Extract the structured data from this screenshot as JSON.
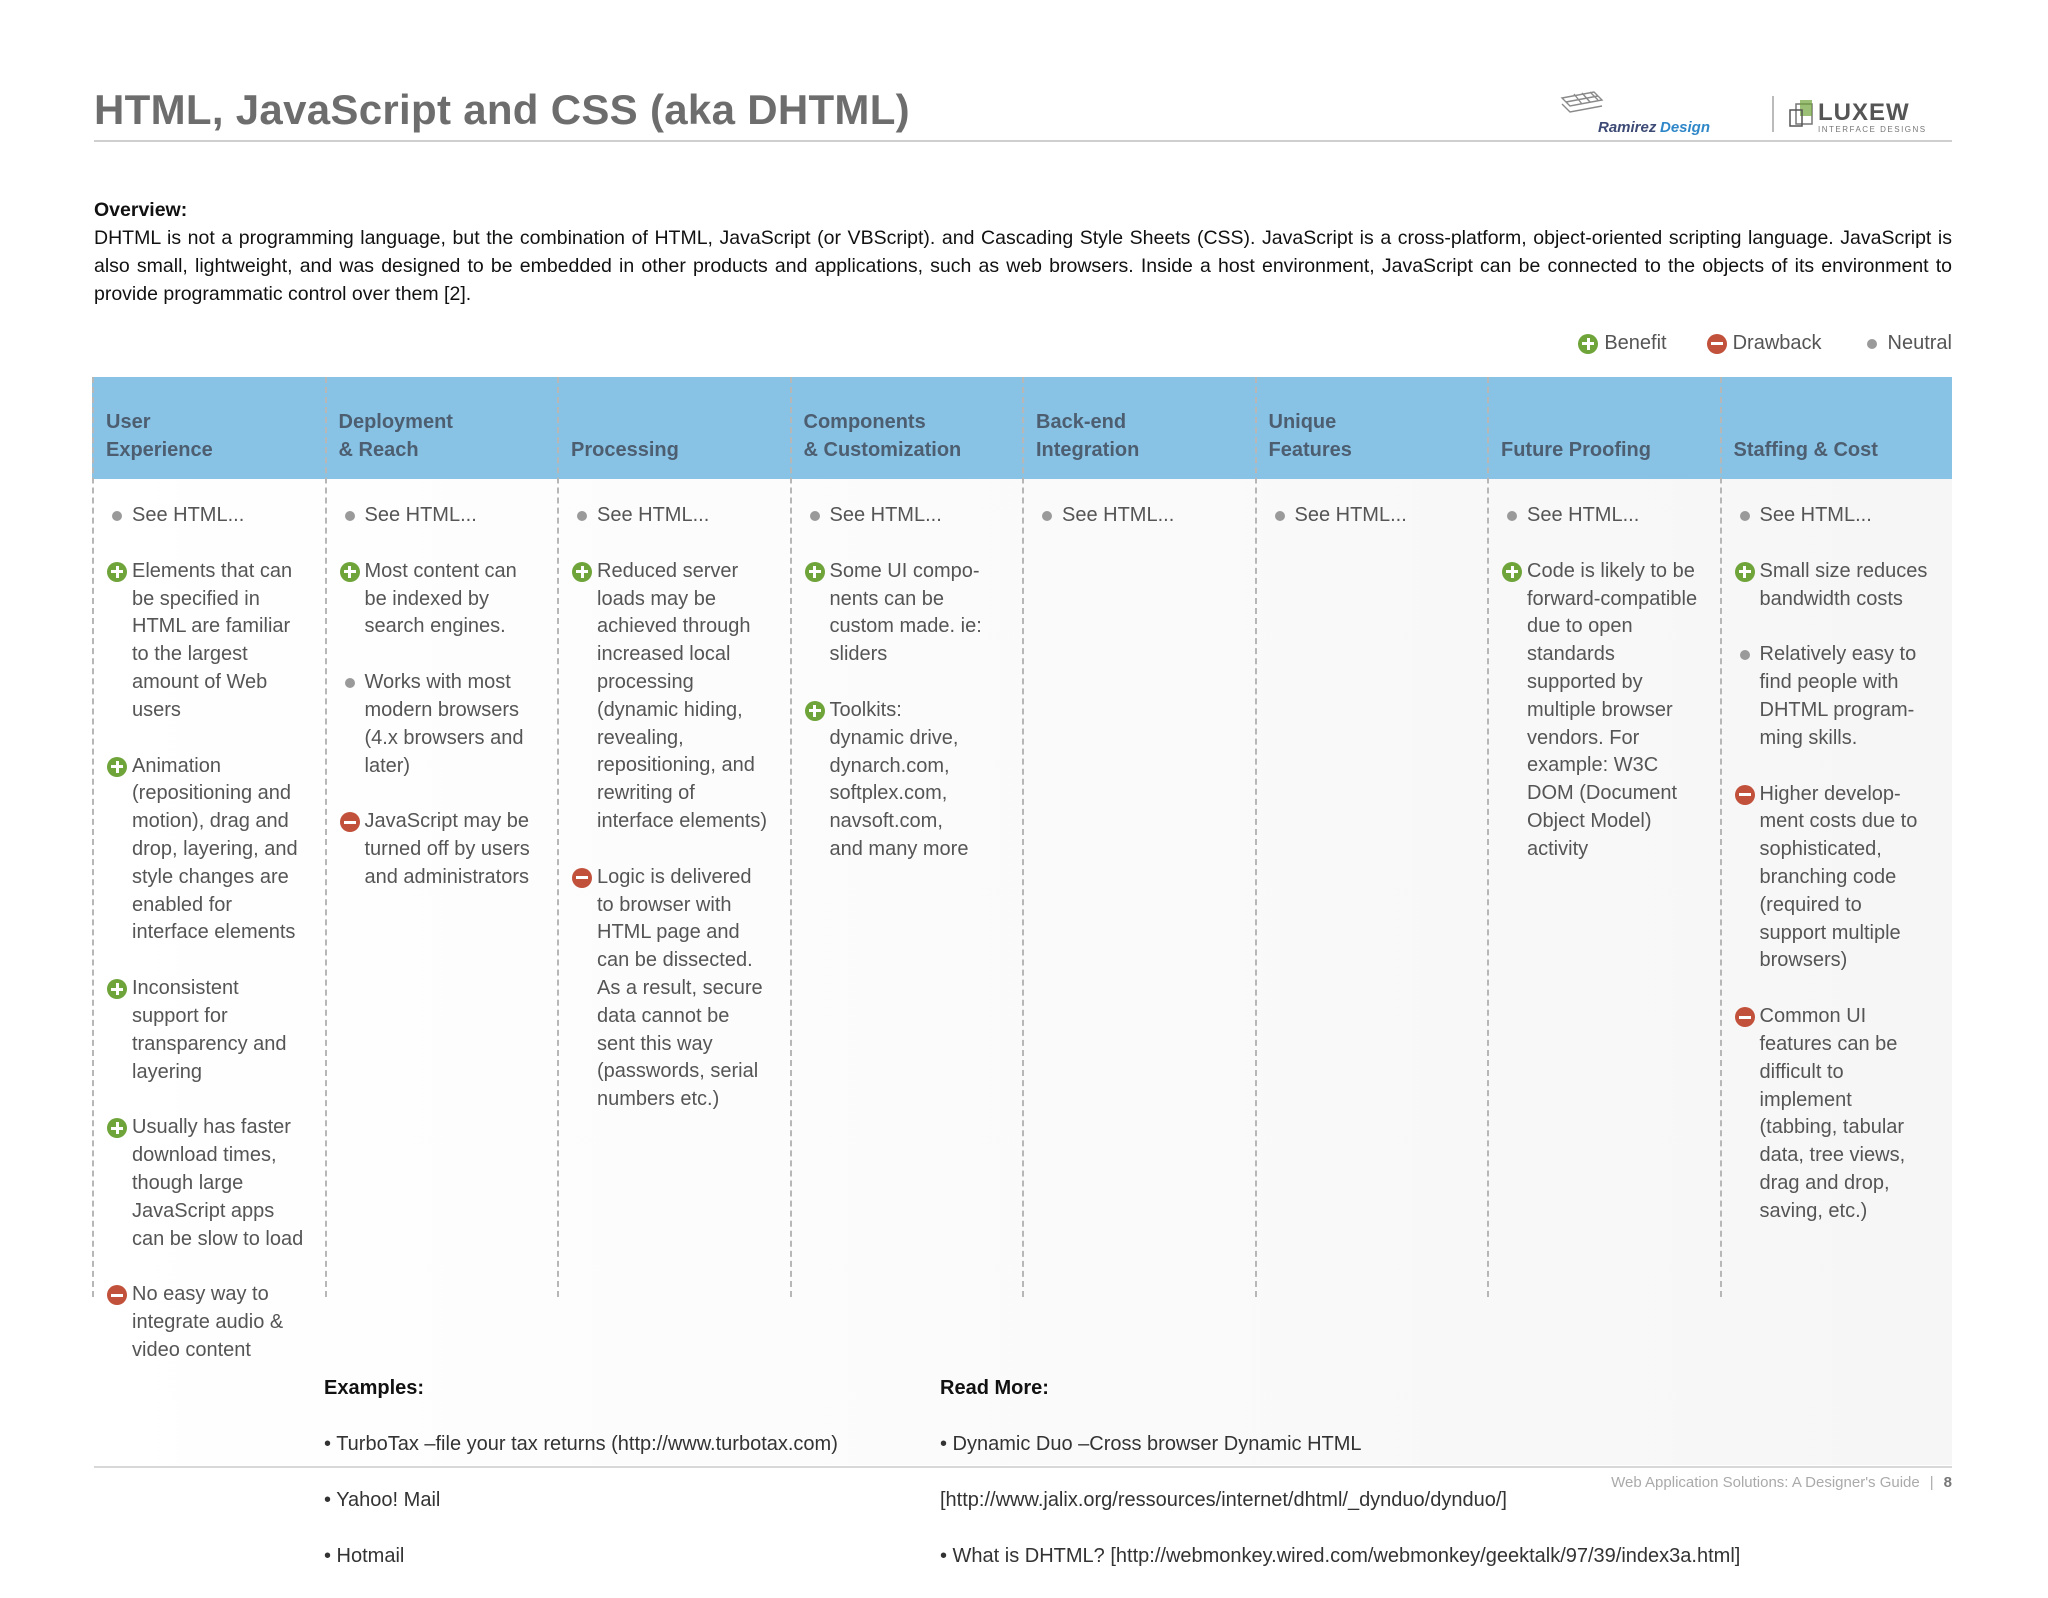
{
  "title": "HTML, JavaScript and CSS (aka DHTML)",
  "logos": {
    "ramirez_design": "Ramirez Design",
    "luxew": "LUXEW",
    "luxew_sub": "INTERFACE DESIGNS"
  },
  "overview": {
    "label": "Overview:",
    "text": "DHTML is not a programming language, but the combination of HTML, JavaScript (or VBScript). and Cascading Style Sheets (CSS).  JavaScript is a cross-platform, object-oriented scripting language. JavaScript is also small, lightweight, and was designed to be embedded in other products and applications, such as web browsers. Inside a host environment, JavaScript can be connected to the objects of its environment to provide programmatic control over them [2]."
  },
  "legend": {
    "benefit": "Benefit",
    "drawback": "Drawback",
    "neutral": "Neutral"
  },
  "colors": {
    "header_band": "#88c3e6",
    "benefit": "#6fa43a",
    "drawback": "#c2513b",
    "neutral": "#9a9a9a",
    "title": "#6d6d6d"
  },
  "columns": [
    {
      "heading": "User\nExperience",
      "items": [
        {
          "type": "neutral",
          "text": "See HTML..."
        },
        {
          "type": "benefit",
          "text": "Elements that can\nbe specified in\nHTML are familiar\nto the largest\namount of Web\nusers"
        },
        {
          "type": "benefit",
          "text": "Animation\n(repositioning and\nmotion), drag and\ndrop, layering, and\nstyle changes are\nenabled for\ninterface elements"
        },
        {
          "type": "benefit",
          "text": "Inconsistent\nsupport for\ntransparency and\nlayering"
        },
        {
          "type": "benefit",
          "text": "Usually has faster\ndownload times,\nthough large\nJavaScript apps\ncan be slow to load"
        },
        {
          "type": "drawback",
          "text": "No easy way to\nintegrate audio &\nvideo content"
        }
      ]
    },
    {
      "heading": "Deployment\n& Reach",
      "items": [
        {
          "type": "neutral",
          "text": "See HTML..."
        },
        {
          "type": "benefit",
          "text": "Most content can\nbe indexed by\nsearch engines."
        },
        {
          "type": "neutral",
          "text": "Works with most\nmodern browsers\n(4.x browsers and\nlater)"
        },
        {
          "type": "drawback",
          "text": "JavaScript may be\nturned off by users\nand administrators"
        }
      ]
    },
    {
      "heading": "Processing",
      "items": [
        {
          "type": "neutral",
          "text": "See HTML..."
        },
        {
          "type": "benefit",
          "text": "Reduced server\nloads may be\nachieved through\nincreased local\nprocessing\n(dynamic hiding,\nrevealing,\nrepositioning, and\nrewriting of\ninterface elements)"
        },
        {
          "type": "drawback",
          "text": "Logic is delivered\nto browser with\nHTML page and\ncan be dissected.\nAs a result, secure\ndata cannot be\nsent this way\n(passwords, serial\nnumbers etc.)"
        }
      ]
    },
    {
      "heading": "Components\n& Customization",
      "items": [
        {
          "type": "neutral",
          "text": "See HTML..."
        },
        {
          "type": "benefit",
          "text": "Some UI compo-\nnents can be\ncustom made. ie:\nsliders"
        },
        {
          "type": "benefit",
          "text": "Toolkits:\ndynamic drive,\ndynarch.com,\nsoftplex.com,\nnavsoft.com,\nand many more"
        }
      ]
    },
    {
      "heading": "Back-end\nIntegration",
      "items": [
        {
          "type": "neutral",
          "text": "See HTML..."
        }
      ]
    },
    {
      "heading": "Unique\nFeatures",
      "items": [
        {
          "type": "neutral",
          "text": "See HTML..."
        }
      ]
    },
    {
      "heading": "Future Proofing",
      "items": [
        {
          "type": "neutral",
          "text": "See HTML..."
        },
        {
          "type": "benefit",
          "text": "Code is likely to be\nforward-compatible\ndue to open\nstandards\nsupported by\nmultiple browser\nvendors. For\nexample: W3C\nDOM (Document\nObject Model)\nactivity"
        }
      ]
    },
    {
      "heading": "Staffing & Cost",
      "items": [
        {
          "type": "neutral",
          "text": "See HTML..."
        },
        {
          "type": "benefit",
          "text": "Small size reduces\nbandwidth costs"
        },
        {
          "type": "neutral",
          "text": "Relatively easy to\nfind people with\nDHTML program-\nming skills."
        },
        {
          "type": "drawback",
          "text": "Higher develop-\nment costs due to\nsophisticated,\nbranching code\n(required to\nsupport multiple\nbrowsers)"
        },
        {
          "type": "drawback",
          "text": "Common UI\nfeatures can be\ndifficult to\nimplement\n(tabbing, tabular\ndata, tree views,\ndrag and drop,\nsaving, etc.)"
        }
      ]
    }
  ],
  "examples": {
    "label": "Examples:",
    "items": [
      "• TurboTax –file your tax returns (http://www.turbotax.com)",
      "• Yahoo! Mail",
      "• Hotmail"
    ]
  },
  "read_more": {
    "label": "Read More:",
    "items": [
      "• Dynamic Duo –Cross browser Dynamic HTML",
      "[http://www.jalix.org/ressources/internet/dhtml/_dynduo/dynduo/]",
      "• What is DHTML? [http://webmonkey.wired.com/webmonkey/geektalk/97/39/index3a.html]"
    ]
  },
  "footer": {
    "guide": "Web Application Solutions: A Designer's Guide",
    "separator": "|",
    "page": "8"
  }
}
